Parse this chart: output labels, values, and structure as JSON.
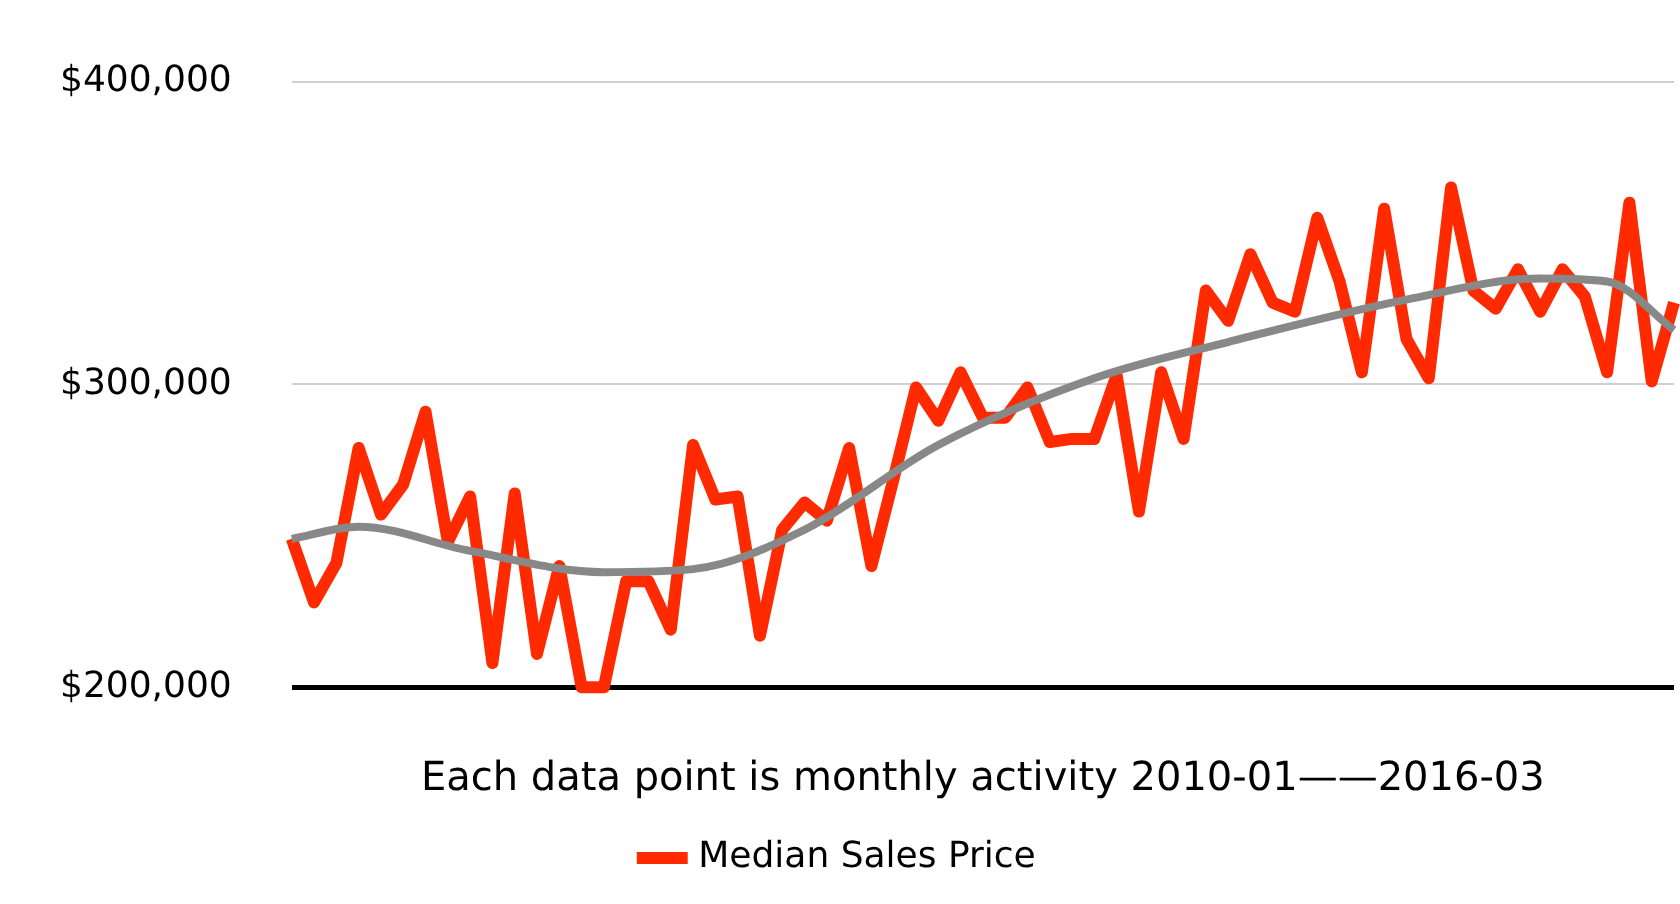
{
  "chart_data": {
    "type": "line",
    "xlabel": "Each data point is monthly activity 2010-01——2016-03",
    "categories": [
      null,
      null,
      null,
      null,
      null,
      null,
      null,
      null,
      null,
      null,
      null,
      null,
      null,
      null,
      null,
      null,
      null,
      null,
      null,
      null,
      null,
      null,
      null,
      null,
      null,
      null,
      null,
      null,
      null,
      null,
      null,
      null,
      null,
      null,
      null,
      null,
      null,
      null,
      null,
      null,
      null,
      null,
      null,
      null,
      null,
      null,
      null,
      null,
      null,
      null,
      null,
      null,
      null,
      null,
      null,
      null,
      null,
      null,
      null,
      null,
      null,
      null,
      null
    ],
    "series": [
      {
        "name": "Median Sales Price",
        "color": "#ff2a00",
        "values": [
          249000,
          228000,
          241000,
          279000,
          257000,
          267000,
          291000,
          248000,
          263000,
          208000,
          264000,
          211000,
          240000,
          200000,
          200000,
          235000,
          235000,
          219000,
          280000,
          262000,
          263000,
          217000,
          252000,
          261000,
          255000,
          279000,
          240000,
          269000,
          299000,
          288000,
          304000,
          289000,
          289000,
          299000,
          281000,
          282000,
          282000,
          303000,
          258000,
          304000,
          282000,
          331000,
          321000,
          343000,
          327000,
          324000,
          355000,
          334000,
          304000,
          358000,
          315000,
          302000,
          365000,
          331000,
          325000,
          338000,
          324000,
          338000,
          329000,
          304000,
          360000,
          301000,
          327000
        ]
      },
      {
        "type": "line",
        "color": "#888888",
        "values": [
          249000,
          null,
          null,
          253000,
          null,
          null,
          null,
          null,
          245000,
          null,
          null,
          null,
          null,
          null,
          238000,
          null,
          null,
          null,
          239000,
          null,
          null,
          null,
          null,
          252000,
          null,
          null,
          null,
          null,
          null,
          280000,
          null,
          null,
          null,
          null,
          null,
          null,
          302000,
          null,
          null,
          null,
          null,
          null,
          314000,
          null,
          null,
          null,
          null,
          null,
          null,
          null,
          328000,
          null,
          null,
          null,
          null,
          null,
          335000,
          null,
          null,
          334000,
          null,
          null,
          318000
        ]
      }
    ],
    "ylim": [
      200000,
      400000
    ],
    "yticks": [
      {
        "value": 200000,
        "label": "$200,000"
      },
      {
        "value": 300000,
        "label": "$300,000"
      },
      {
        "value": 400000,
        "label": "$400,000"
      }
    ],
    "grid": "y",
    "legend": "bottom",
    "marker": "none",
    "line_style": "solid"
  }
}
